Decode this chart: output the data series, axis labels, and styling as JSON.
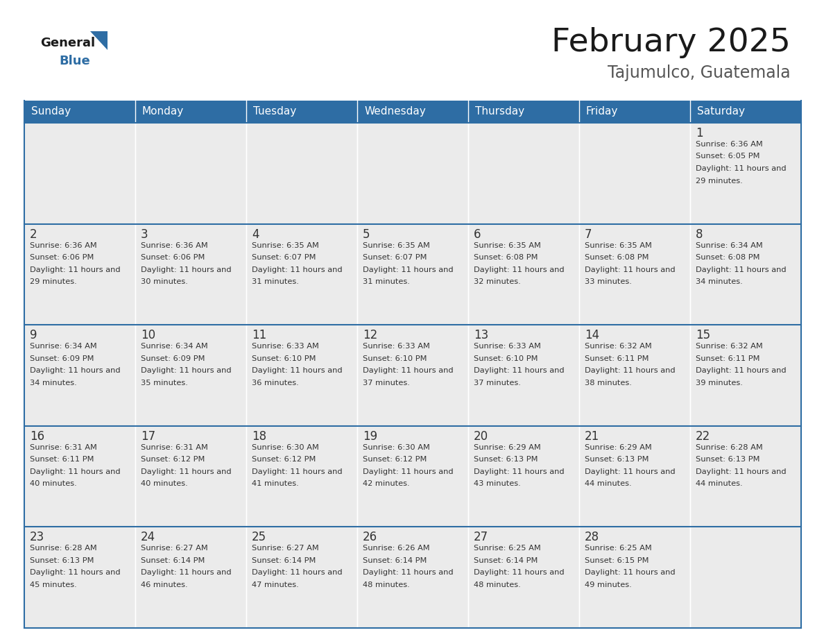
{
  "title": "February 2025",
  "subtitle": "Tajumulco, Guatemala",
  "header_color": "#2E6DA4",
  "header_text_color": "#FFFFFF",
  "cell_bg_color": "#EBEBEB",
  "day_num_color": "#333333",
  "text_color": "#333333",
  "days_of_week": [
    "Sunday",
    "Monday",
    "Tuesday",
    "Wednesday",
    "Thursday",
    "Friday",
    "Saturday"
  ],
  "calendar_data": [
    [
      null,
      null,
      null,
      null,
      null,
      null,
      {
        "day": 1,
        "sunrise": "6:36 AM",
        "sunset": "6:05 PM",
        "daylight": "11 hours and 29 minutes."
      }
    ],
    [
      {
        "day": 2,
        "sunrise": "6:36 AM",
        "sunset": "6:06 PM",
        "daylight": "11 hours and 29 minutes."
      },
      {
        "day": 3,
        "sunrise": "6:36 AM",
        "sunset": "6:06 PM",
        "daylight": "11 hours and 30 minutes."
      },
      {
        "day": 4,
        "sunrise": "6:35 AM",
        "sunset": "6:07 PM",
        "daylight": "11 hours and 31 minutes."
      },
      {
        "day": 5,
        "sunrise": "6:35 AM",
        "sunset": "6:07 PM",
        "daylight": "11 hours and 31 minutes."
      },
      {
        "day": 6,
        "sunrise": "6:35 AM",
        "sunset": "6:08 PM",
        "daylight": "11 hours and 32 minutes."
      },
      {
        "day": 7,
        "sunrise": "6:35 AM",
        "sunset": "6:08 PM",
        "daylight": "11 hours and 33 minutes."
      },
      {
        "day": 8,
        "sunrise": "6:34 AM",
        "sunset": "6:08 PM",
        "daylight": "11 hours and 34 minutes."
      }
    ],
    [
      {
        "day": 9,
        "sunrise": "6:34 AM",
        "sunset": "6:09 PM",
        "daylight": "11 hours and 34 minutes."
      },
      {
        "day": 10,
        "sunrise": "6:34 AM",
        "sunset": "6:09 PM",
        "daylight": "11 hours and 35 minutes."
      },
      {
        "day": 11,
        "sunrise": "6:33 AM",
        "sunset": "6:10 PM",
        "daylight": "11 hours and 36 minutes."
      },
      {
        "day": 12,
        "sunrise": "6:33 AM",
        "sunset": "6:10 PM",
        "daylight": "11 hours and 37 minutes."
      },
      {
        "day": 13,
        "sunrise": "6:33 AM",
        "sunset": "6:10 PM",
        "daylight": "11 hours and 37 minutes."
      },
      {
        "day": 14,
        "sunrise": "6:32 AM",
        "sunset": "6:11 PM",
        "daylight": "11 hours and 38 minutes."
      },
      {
        "day": 15,
        "sunrise": "6:32 AM",
        "sunset": "6:11 PM",
        "daylight": "11 hours and 39 minutes."
      }
    ],
    [
      {
        "day": 16,
        "sunrise": "6:31 AM",
        "sunset": "6:11 PM",
        "daylight": "11 hours and 40 minutes."
      },
      {
        "day": 17,
        "sunrise": "6:31 AM",
        "sunset": "6:12 PM",
        "daylight": "11 hours and 40 minutes."
      },
      {
        "day": 18,
        "sunrise": "6:30 AM",
        "sunset": "6:12 PM",
        "daylight": "11 hours and 41 minutes."
      },
      {
        "day": 19,
        "sunrise": "6:30 AM",
        "sunset": "6:12 PM",
        "daylight": "11 hours and 42 minutes."
      },
      {
        "day": 20,
        "sunrise": "6:29 AM",
        "sunset": "6:13 PM",
        "daylight": "11 hours and 43 minutes."
      },
      {
        "day": 21,
        "sunrise": "6:29 AM",
        "sunset": "6:13 PM",
        "daylight": "11 hours and 44 minutes."
      },
      {
        "day": 22,
        "sunrise": "6:28 AM",
        "sunset": "6:13 PM",
        "daylight": "11 hours and 44 minutes."
      }
    ],
    [
      {
        "day": 23,
        "sunrise": "6:28 AM",
        "sunset": "6:13 PM",
        "daylight": "11 hours and 45 minutes."
      },
      {
        "day": 24,
        "sunrise": "6:27 AM",
        "sunset": "6:14 PM",
        "daylight": "11 hours and 46 minutes."
      },
      {
        "day": 25,
        "sunrise": "6:27 AM",
        "sunset": "6:14 PM",
        "daylight": "11 hours and 47 minutes."
      },
      {
        "day": 26,
        "sunrise": "6:26 AM",
        "sunset": "6:14 PM",
        "daylight": "11 hours and 48 minutes."
      },
      {
        "day": 27,
        "sunrise": "6:25 AM",
        "sunset": "6:14 PM",
        "daylight": "11 hours and 48 minutes."
      },
      {
        "day": 28,
        "sunrise": "6:25 AM",
        "sunset": "6:15 PM",
        "daylight": "11 hours and 49 minutes."
      },
      null
    ]
  ]
}
